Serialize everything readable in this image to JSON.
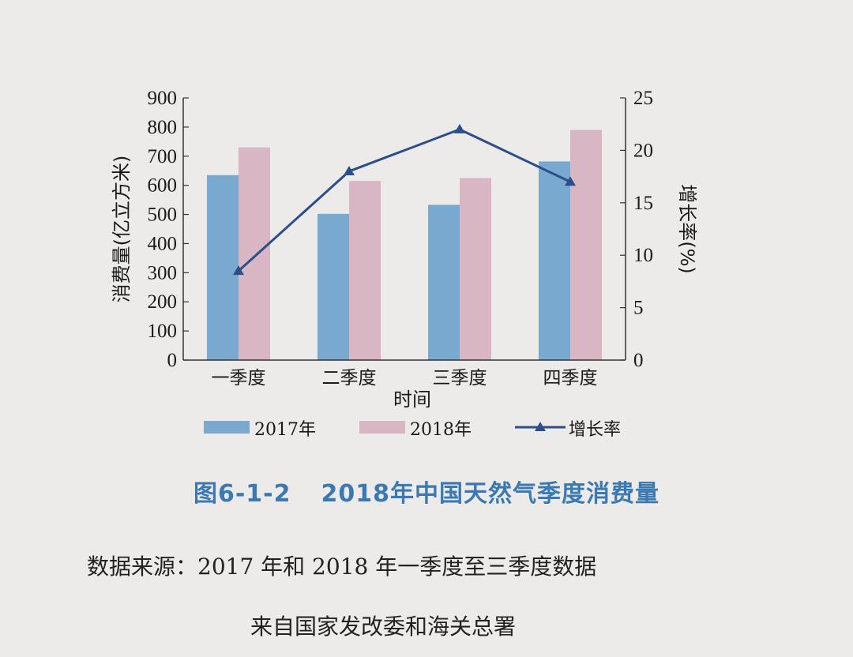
{
  "chart_data": {
    "type": "bar",
    "categories": [
      "一季度",
      "二季度",
      "三季度",
      "四季度"
    ],
    "xlabel": "时间",
    "ylabel": "消费量(亿立方米)",
    "ylabel_right": "增长率(%)",
    "ylim": [
      0,
      900
    ],
    "yticks": [
      0,
      100,
      200,
      300,
      400,
      500,
      600,
      700,
      800,
      900
    ],
    "ylim_right": [
      0,
      25
    ],
    "yticks_right": [
      0,
      5,
      10,
      15,
      20,
      25
    ],
    "series": [
      {
        "name": "2017年",
        "kind": "bar",
        "axis": "left",
        "color": "#7aa9d0",
        "values": [
          635,
          502,
          533,
          682
        ]
      },
      {
        "name": "2018年",
        "kind": "bar",
        "axis": "left",
        "color": "#d9b6c4",
        "values": [
          730,
          615,
          625,
          790
        ]
      },
      {
        "name": "增长率",
        "kind": "line",
        "axis": "right",
        "color": "#2b4f8a",
        "marker": "triangle",
        "values": [
          8.5,
          18,
          22,
          17
        ]
      }
    ],
    "grid": false,
    "legend": "bottom"
  },
  "caption": {
    "number": "图6-1-2",
    "title": "2018年中国天然气季度消费量"
  },
  "source": {
    "line1": "数据来源：2017 年和 2018 年一季度至三季度数据",
    "line2": "来自国家发改委和海关总署"
  }
}
